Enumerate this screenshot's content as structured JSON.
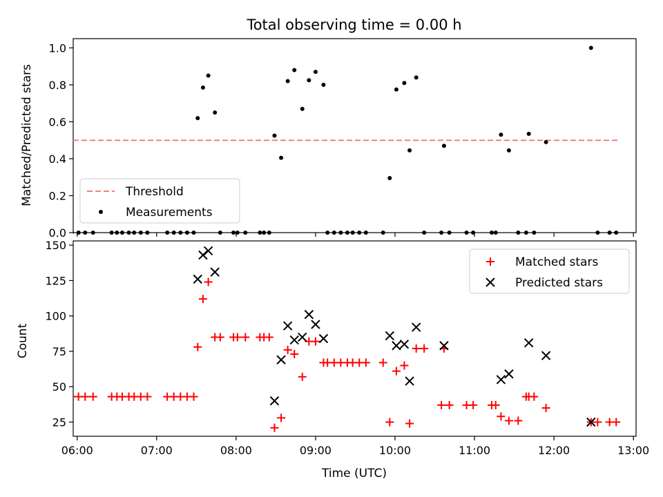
{
  "chart_data": [
    {
      "type": "scatter",
      "title": "Total observing time = 0.00 h",
      "ylabel": "Matched/Predicted stars",
      "xlabel": "",
      "xlim": [
        "05:57",
        "13:02"
      ],
      "ylim": [
        0,
        1.05
      ],
      "yticks": [
        "0.0",
        "0.2",
        "0.4",
        "0.6",
        "0.8",
        "1.0"
      ],
      "legend": {
        "placement": "lower-left",
        "entries": [
          {
            "label": "Threshold",
            "kind": "dashed-line",
            "color": "#f08080"
          },
          {
            "label": "Measurements",
            "kind": "dot",
            "color": "#000000"
          }
        ]
      },
      "threshold": {
        "y": 0.5,
        "x_start": "05:57",
        "x_end": "12:49"
      },
      "series": [
        {
          "color": "#000000",
          "points": [
            [
              "05:56",
              0
            ],
            [
              "06:01",
              0
            ],
            [
              "06:06",
              0
            ],
            [
              "06:12",
              0
            ],
            [
              "06:26",
              0
            ],
            [
              "06:30",
              0
            ],
            [
              "06:34",
              0
            ],
            [
              "06:39",
              0
            ],
            [
              "06:43",
              0
            ],
            [
              "06:48",
              0
            ],
            [
              "06:53",
              0
            ],
            [
              "07:08",
              0
            ],
            [
              "07:13",
              0
            ],
            [
              "07:18",
              0
            ],
            [
              "07:23",
              0
            ],
            [
              "07:28",
              0
            ],
            [
              "07:31",
              0.62
            ],
            [
              "07:35",
              0.785
            ],
            [
              "07:39",
              0.85
            ],
            [
              "07:44",
              0.65
            ],
            [
              "07:48",
              0
            ],
            [
              "07:58",
              0
            ],
            [
              "08:01",
              0
            ],
            [
              "08:07",
              0
            ],
            [
              "08:18",
              0
            ],
            [
              "08:21",
              0
            ],
            [
              "08:25",
              0
            ],
            [
              "08:29",
              0.525
            ],
            [
              "08:34",
              0.405
            ],
            [
              "08:39",
              0.82
            ],
            [
              "08:44",
              0.88
            ],
            [
              "08:50",
              0.67
            ],
            [
              "08:55",
              0.825
            ],
            [
              "09:00",
              0.87
            ],
            [
              "09:06",
              0.8
            ],
            [
              "09:09",
              0
            ],
            [
              "09:14",
              0
            ],
            [
              "09:19",
              0
            ],
            [
              "09:24",
              0
            ],
            [
              "09:28",
              0
            ],
            [
              "09:33",
              0
            ],
            [
              "09:38",
              0
            ],
            [
              "09:51",
              0
            ],
            [
              "09:56",
              0.295
            ],
            [
              "10:01",
              0.775
            ],
            [
              "10:07",
              0.81
            ],
            [
              "10:11",
              0.445
            ],
            [
              "10:16",
              0.84
            ],
            [
              "10:22",
              0
            ],
            [
              "10:35",
              0
            ],
            [
              "10:37",
              0.47
            ],
            [
              "10:41",
              0
            ],
            [
              "10:54",
              0
            ],
            [
              "10:59",
              0
            ],
            [
              "11:13",
              0
            ],
            [
              "11:16",
              0
            ],
            [
              "11:20",
              0.53
            ],
            [
              "11:26",
              0.445
            ],
            [
              "11:33",
              0
            ],
            [
              "11:39",
              0
            ],
            [
              "11:41",
              0.535
            ],
            [
              "11:45",
              0
            ],
            [
              "11:54",
              0.49
            ],
            [
              "12:28",
              1.0
            ],
            [
              "12:33",
              0
            ],
            [
              "12:42",
              0
            ],
            [
              "12:47",
              0
            ]
          ]
        }
      ]
    },
    {
      "type": "scatter",
      "title": "",
      "ylabel": "Count",
      "xlabel": "Time (UTC)",
      "xlim": [
        "05:57",
        "13:02"
      ],
      "ylim": [
        15,
        153
      ],
      "yticks": [
        "25",
        "50",
        "75",
        "100",
        "125",
        "150"
      ],
      "xticks": [
        "06:00",
        "07:00",
        "08:00",
        "09:00",
        "10:00",
        "11:00",
        "12:00",
        "13:00"
      ],
      "legend": {
        "placement": "upper-right",
        "entries": [
          {
            "label": "Matched stars",
            "kind": "plus",
            "color": "#ff0000"
          },
          {
            "label": "Predicted stars",
            "kind": "cross",
            "color": "#000000"
          }
        ]
      },
      "series": [
        {
          "name": "Matched stars",
          "marker": "plus",
          "color": "#ff0000",
          "points": [
            [
              "05:56",
              43
            ],
            [
              "06:01",
              43
            ],
            [
              "06:06",
              43
            ],
            [
              "06:12",
              43
            ],
            [
              "06:26",
              43
            ],
            [
              "06:30",
              43
            ],
            [
              "06:34",
              43
            ],
            [
              "06:39",
              43
            ],
            [
              "06:43",
              43
            ],
            [
              "06:48",
              43
            ],
            [
              "06:53",
              43
            ],
            [
              "07:08",
              43
            ],
            [
              "07:13",
              43
            ],
            [
              "07:18",
              43
            ],
            [
              "07:23",
              43
            ],
            [
              "07:28",
              43
            ],
            [
              "07:31",
              78
            ],
            [
              "07:35",
              112
            ],
            [
              "07:39",
              124
            ],
            [
              "07:44",
              85
            ],
            [
              "07:48",
              85
            ],
            [
              "07:58",
              85
            ],
            [
              "08:01",
              85
            ],
            [
              "08:07",
              85
            ],
            [
              "08:18",
              85
            ],
            [
              "08:21",
              85
            ],
            [
              "08:25",
              85
            ],
            [
              "08:29",
              21
            ],
            [
              "08:34",
              28
            ],
            [
              "08:39",
              76
            ],
            [
              "08:44",
              73
            ],
            [
              "08:50",
              57
            ],
            [
              "08:55",
              82
            ],
            [
              "09:00",
              82
            ],
            [
              "09:06",
              67
            ],
            [
              "09:09",
              67
            ],
            [
              "09:14",
              67
            ],
            [
              "09:19",
              67
            ],
            [
              "09:24",
              67
            ],
            [
              "09:28",
              67
            ],
            [
              "09:33",
              67
            ],
            [
              "09:38",
              67
            ],
            [
              "09:51",
              67
            ],
            [
              "09:56",
              25
            ],
            [
              "10:01",
              61
            ],
            [
              "10:07",
              65
            ],
            [
              "10:11",
              24
            ],
            [
              "10:16",
              77
            ],
            [
              "10:22",
              77
            ],
            [
              "10:35",
              37
            ],
            [
              "10:37",
              77
            ],
            [
              "10:41",
              37
            ],
            [
              "10:54",
              37
            ],
            [
              "10:59",
              37
            ],
            [
              "11:13",
              37
            ],
            [
              "11:16",
              37
            ],
            [
              "11:20",
              29
            ],
            [
              "11:26",
              26
            ],
            [
              "11:33",
              26
            ],
            [
              "11:39",
              43
            ],
            [
              "11:41",
              43
            ],
            [
              "11:45",
              43
            ],
            [
              "11:54",
              35
            ],
            [
              "12:28",
              25
            ],
            [
              "12:33",
              25
            ],
            [
              "12:42",
              25
            ],
            [
              "12:47",
              25
            ]
          ]
        },
        {
          "name": "Predicted stars",
          "marker": "cross",
          "color": "#000000",
          "points": [
            [
              "07:31",
              126
            ],
            [
              "07:35",
              143
            ],
            [
              "07:39",
              146
            ],
            [
              "07:44",
              131
            ],
            [
              "08:29",
              40
            ],
            [
              "08:34",
              69
            ],
            [
              "08:39",
              93
            ],
            [
              "08:44",
              83
            ],
            [
              "08:50",
              85
            ],
            [
              "08:55",
              101
            ],
            [
              "09:00",
              94
            ],
            [
              "09:06",
              84
            ],
            [
              "09:56",
              86
            ],
            [
              "10:01",
              79
            ],
            [
              "10:07",
              80
            ],
            [
              "10:11",
              54
            ],
            [
              "10:16",
              92
            ],
            [
              "10:37",
              79
            ],
            [
              "11:20",
              55
            ],
            [
              "11:26",
              59
            ],
            [
              "11:41",
              81
            ],
            [
              "11:54",
              72
            ],
            [
              "12:28",
              25
            ]
          ]
        }
      ]
    }
  ]
}
